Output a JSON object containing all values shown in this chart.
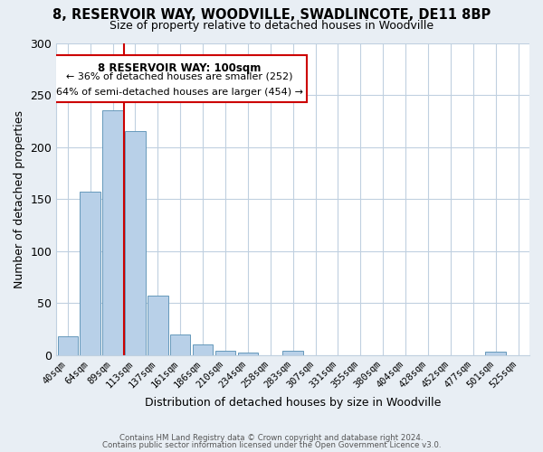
{
  "title": "8, RESERVOIR WAY, WOODVILLE, SWADLINCOTE, DE11 8BP",
  "subtitle": "Size of property relative to detached houses in Woodville",
  "bar_labels": [
    "40sqm",
    "64sqm",
    "89sqm",
    "113sqm",
    "137sqm",
    "161sqm",
    "186sqm",
    "210sqm",
    "234sqm",
    "258sqm",
    "283sqm",
    "307sqm",
    "331sqm",
    "355sqm",
    "380sqm",
    "404sqm",
    "428sqm",
    "452sqm",
    "477sqm",
    "501sqm",
    "525sqm"
  ],
  "bar_values": [
    18,
    157,
    235,
    215,
    57,
    20,
    10,
    4,
    2,
    0,
    4,
    0,
    0,
    0,
    0,
    0,
    0,
    0,
    0,
    3,
    0
  ],
  "bar_color": "#b8d0e8",
  "bar_edgecolor": "#6699bb",
  "xlabel": "Distribution of detached houses by size in Woodville",
  "ylabel": "Number of detached properties",
  "ylim": [
    0,
    300
  ],
  "yticks": [
    0,
    50,
    100,
    150,
    200,
    250,
    300
  ],
  "red_line_x": 2.5,
  "annotation_title": "8 RESERVOIR WAY: 100sqm",
  "annotation_line1": "← 36% of detached houses are smaller (252)",
  "annotation_line2": "64% of semi-detached houses are larger (454) →",
  "footer1": "Contains HM Land Registry data © Crown copyright and database right 2024.",
  "footer2": "Contains public sector information licensed under the Open Government Licence v3.0.",
  "bg_color": "#e8eef4",
  "plot_bg_color": "#ffffff",
  "grid_color": "#c0d0e0",
  "title_fontsize": 10.5,
  "subtitle_fontsize": 9
}
